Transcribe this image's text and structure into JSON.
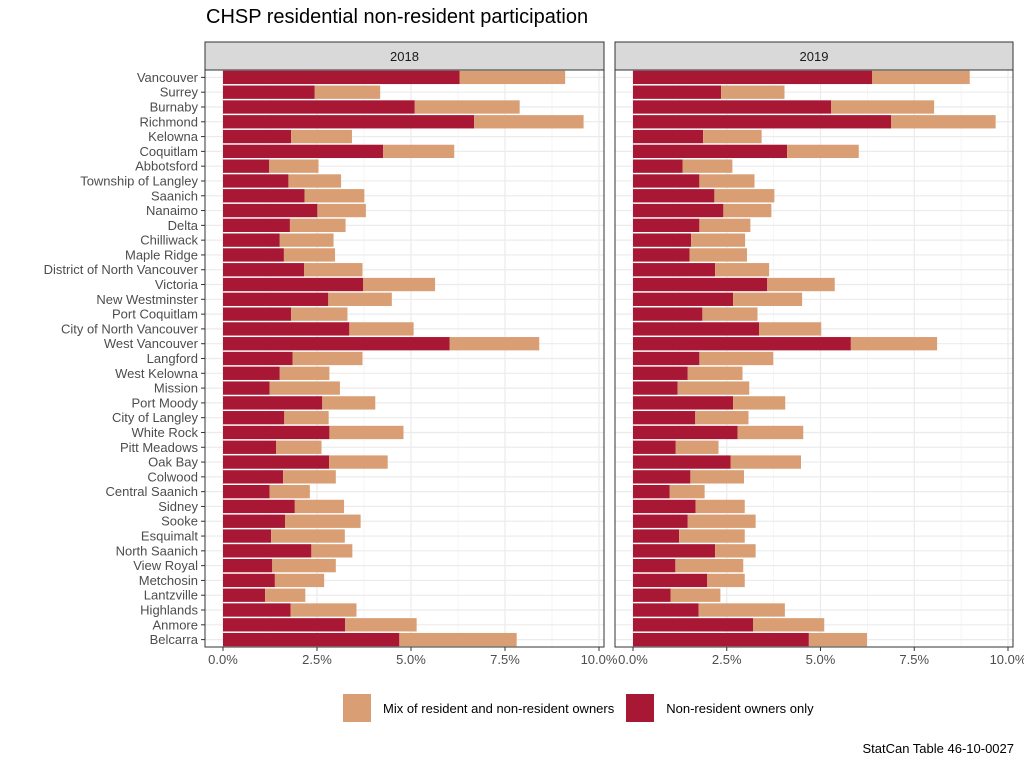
{
  "chart_data": {
    "type": "bar",
    "orientation": "horizontal",
    "stacked": true,
    "title": "CHSP residential non-resident participation",
    "caption": "StatCan Table 46-10-0027",
    "xlabel": "",
    "ylabel": "",
    "xlim": [
      0,
      10
    ],
    "x_ticks": [
      "0.0%",
      "2.5%",
      "5.0%",
      "7.5%",
      "10.0%"
    ],
    "x_tick_values": [
      0,
      2.5,
      5,
      7.5,
      10
    ],
    "grid": true,
    "legend_position": "bottom",
    "legend": [
      {
        "name": "Mix of resident and non-resident owners",
        "color": "#D99E73"
      },
      {
        "name": "Non-resident owners only",
        "color": "#A81834"
      }
    ],
    "categories": [
      "Vancouver",
      "Surrey",
      "Burnaby",
      "Richmond",
      "Kelowna",
      "Coquitlam",
      "Abbotsford",
      "Township of Langley",
      "Saanich",
      "Nanaimo",
      "Delta",
      "Chilliwack",
      "Maple Ridge",
      "District of North Vancouver",
      "Victoria",
      "New Westminster",
      "Port Coquitlam",
      "City of North Vancouver",
      "West Vancouver",
      "Langford",
      "West Kelowna",
      "Mission",
      "Port Moody",
      "City of Langley",
      "White Rock",
      "Pitt Meadows",
      "Oak Bay",
      "Colwood",
      "Central Saanich",
      "Sidney",
      "Sooke",
      "Esquimalt",
      "North Saanich",
      "View Royal",
      "Metchosin",
      "Lantzville",
      "Highlands",
      "Anmore",
      "Belcarra"
    ],
    "panels": [
      {
        "name": "2018",
        "series": [
          {
            "name": "Non-resident owners only",
            "values": [
              6.29,
              2.44,
              5.1,
              6.68,
              1.81,
              4.26,
              1.23,
              1.74,
              2.17,
              2.51,
              1.78,
              1.51,
              1.62,
              2.16,
              3.73,
              2.8,
              1.81,
              3.36,
              6.03,
              1.85,
              1.51,
              1.24,
              2.64,
              1.63,
              2.83,
              1.41,
              2.82,
              1.6,
              1.24,
              1.91,
              1.65,
              1.28,
              2.35,
              1.31,
              1.38,
              1.12,
              1.8,
              3.25,
              4.69
            ]
          },
          {
            "name": "Mix of resident and non-resident owners",
            "values": [
              2.81,
              1.74,
              2.79,
              2.91,
              1.62,
              1.89,
              1.31,
              1.4,
              1.59,
              1.29,
              1.48,
              1.43,
              1.36,
              1.55,
              1.91,
              1.69,
              1.5,
              1.71,
              2.38,
              1.86,
              1.32,
              1.87,
              1.41,
              1.18,
              1.97,
              1.21,
              1.56,
              1.4,
              1.07,
              1.31,
              2.01,
              1.96,
              1.09,
              1.69,
              1.31,
              1.07,
              1.75,
              1.9,
              3.12
            ]
          }
        ]
      },
      {
        "name": "2019",
        "series": [
          {
            "name": "Non-resident owners only",
            "values": [
              6.38,
              2.35,
              5.28,
              6.88,
              1.87,
              4.11,
              1.32,
              1.77,
              2.17,
              2.41,
              1.77,
              1.55,
              1.51,
              2.19,
              3.58,
              2.67,
              1.85,
              3.36,
              5.81,
              1.77,
              1.46,
              1.19,
              2.67,
              1.66,
              2.79,
              1.14,
              2.6,
              1.53,
              0.98,
              1.67,
              1.46,
              1.23,
              2.19,
              1.13,
              1.98,
              1.0,
              1.75,
              3.2,
              4.69
            ]
          },
          {
            "name": "Mix of resident and non-resident owners",
            "values": [
              2.6,
              1.69,
              2.75,
              2.79,
              1.56,
              1.91,
              1.33,
              1.47,
              1.6,
              1.28,
              1.36,
              1.44,
              1.53,
              1.44,
              1.8,
              1.84,
              1.47,
              1.66,
              2.3,
              1.97,
              1.46,
              1.91,
              1.39,
              1.42,
              1.75,
              1.14,
              1.88,
              1.43,
              0.93,
              1.31,
              1.81,
              1.75,
              1.08,
              1.81,
              1.0,
              1.33,
              2.3,
              1.9,
              1.55
            ]
          }
        ]
      }
    ]
  }
}
